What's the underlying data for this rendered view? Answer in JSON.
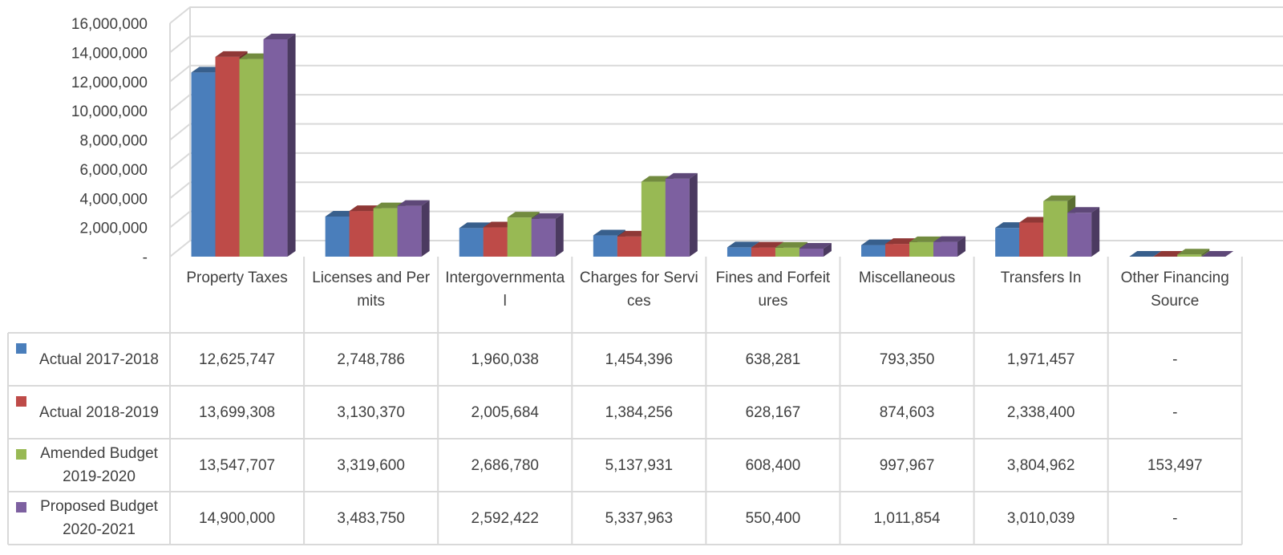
{
  "chart_data": {
    "type": "bar",
    "categories": [
      "Property Taxes",
      "Licenses and Permits",
      "Intergovernmental",
      "Charges for Services",
      "Fines and Forfeitures",
      "Miscellaneous",
      "Transfers In",
      "Other Financing Source"
    ],
    "series": [
      {
        "name": "Actual 2017-2018",
        "color": "#4a7ebb",
        "values": [
          12625747,
          2748786,
          1960038,
          1454396,
          638281,
          793350,
          1971457,
          0
        ],
        "value_labels": [
          "12,625,747",
          "2,748,786",
          "1,960,038",
          "1,454,396",
          "638,281",
          "793,350",
          "1,971,457",
          "-"
        ]
      },
      {
        "name": "Actual 2018-2019",
        "color": "#be4b48",
        "values": [
          13699308,
          3130370,
          2005684,
          1384256,
          628167,
          874603,
          2338400,
          0
        ],
        "value_labels": [
          "13,699,308",
          "3,130,370",
          "2,005,684",
          "1,384,256",
          "628,167",
          "874,603",
          "2,338,400",
          "-"
        ]
      },
      {
        "name": "Amended Budget 2019-2020",
        "color": "#98b954",
        "values": [
          13547707,
          3319600,
          2686780,
          5137931,
          608400,
          997967,
          3804962,
          153497
        ],
        "value_labels": [
          "13,547,707",
          "3,319,600",
          "2,686,780",
          "5,137,931",
          "608,400",
          "997,967",
          "3,804,962",
          "153,497"
        ]
      },
      {
        "name": "Proposed Budget 2020-2021",
        "color": "#7d60a0",
        "values": [
          14900000,
          3483750,
          2592422,
          5337963,
          550400,
          1011854,
          3010039,
          0
        ],
        "value_labels": [
          "14,900,000",
          "3,483,750",
          "2,592,422",
          "5,337,963",
          "550,400",
          "1,011,854",
          "3,010,039",
          "-"
        ]
      }
    ],
    "ylim": [
      0,
      16000000
    ],
    "yticks": [
      {
        "value": 0,
        "label": "-"
      },
      {
        "value": 2000000,
        "label": "2,000,000"
      },
      {
        "value": 4000000,
        "label": "4,000,000"
      },
      {
        "value": 6000000,
        "label": "6,000,000"
      },
      {
        "value": 8000000,
        "label": "8,000,000"
      },
      {
        "value": 10000000,
        "label": "10,000,000"
      },
      {
        "value": 12000000,
        "label": "12,000,000"
      },
      {
        "value": 14000000,
        "label": "14,000,000"
      },
      {
        "value": 16000000,
        "label": "16,000,000"
      }
    ],
    "grid": true
  }
}
